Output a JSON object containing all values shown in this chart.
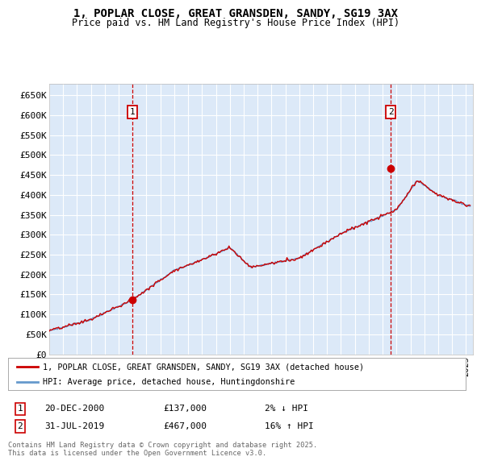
{
  "title_line1": "1, POPLAR CLOSE, GREAT GRANSDEN, SANDY, SG19 3AX",
  "title_line2": "Price paid vs. HM Land Registry's House Price Index (HPI)",
  "ylim": [
    0,
    680000
  ],
  "yticks": [
    0,
    50000,
    100000,
    150000,
    200000,
    250000,
    300000,
    350000,
    400000,
    450000,
    500000,
    550000,
    600000,
    650000
  ],
  "ytick_labels": [
    "£0",
    "£50K",
    "£100K",
    "£150K",
    "£200K",
    "£250K",
    "£300K",
    "£350K",
    "£400K",
    "£450K",
    "£500K",
    "£550K",
    "£600K",
    "£650K"
  ],
  "xlim_start": 1995.0,
  "xlim_end": 2025.5,
  "plot_bg_color": "#dce9f8",
  "fig_bg_color": "#ffffff",
  "grid_color": "#ffffff",
  "sale1_x": 2000.97,
  "sale1_y": 137000,
  "sale2_x": 2019.58,
  "sale2_y": 467000,
  "sale1_date": "20-DEC-2000",
  "sale1_price": "£137,000",
  "sale1_hpi": "2% ↓ HPI",
  "sale2_date": "31-JUL-2019",
  "sale2_price": "£467,000",
  "sale2_hpi": "16% ↑ HPI",
  "legend_line1": "1, POPLAR CLOSE, GREAT GRANSDEN, SANDY, SG19 3AX (detached house)",
  "legend_line2": "HPI: Average price, detached house, Huntingdonshire",
  "footer": "Contains HM Land Registry data © Crown copyright and database right 2025.\nThis data is licensed under the Open Government Licence v3.0.",
  "line_color_red": "#cc0000",
  "line_color_blue": "#6699cc"
}
